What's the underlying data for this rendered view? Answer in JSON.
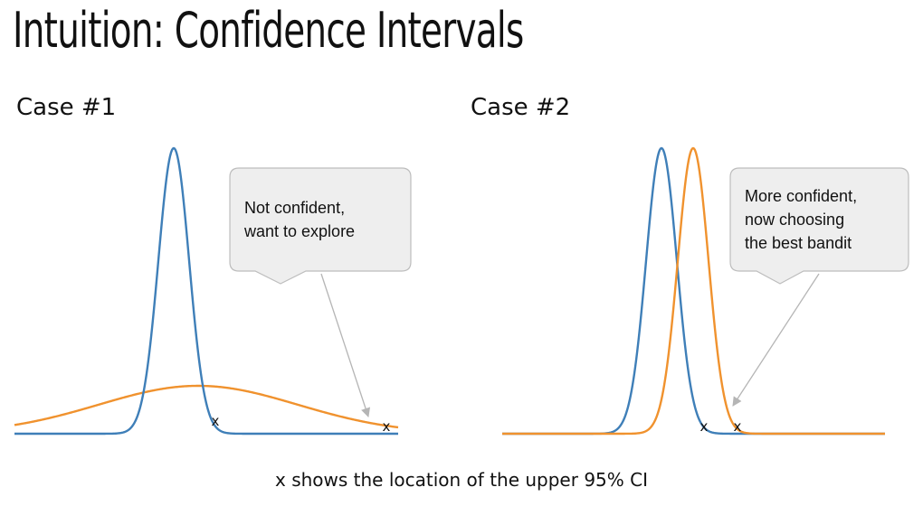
{
  "slide": {
    "title": "Intuition: Confidence Intervals",
    "caption": "x shows the location of the upper 95% CI"
  },
  "cases": [
    {
      "label": "Case #1",
      "callout_lines": [
        "Not confident,",
        "want to explore"
      ],
      "marker_1": "x",
      "marker_2": "x"
    },
    {
      "label": "Case #2",
      "callout_lines": [
        "More confident,",
        "now choosing",
        "the best bandit"
      ],
      "marker_1": "x",
      "marker_2": "x"
    }
  ],
  "colors": {
    "blue_curve": "#3f7fb8",
    "orange_curve": "#f0922e",
    "callout_fill": "#eeeeee",
    "callout_stroke": "#bdbdbd",
    "pointer_line": "#b5b5b5"
  }
}
